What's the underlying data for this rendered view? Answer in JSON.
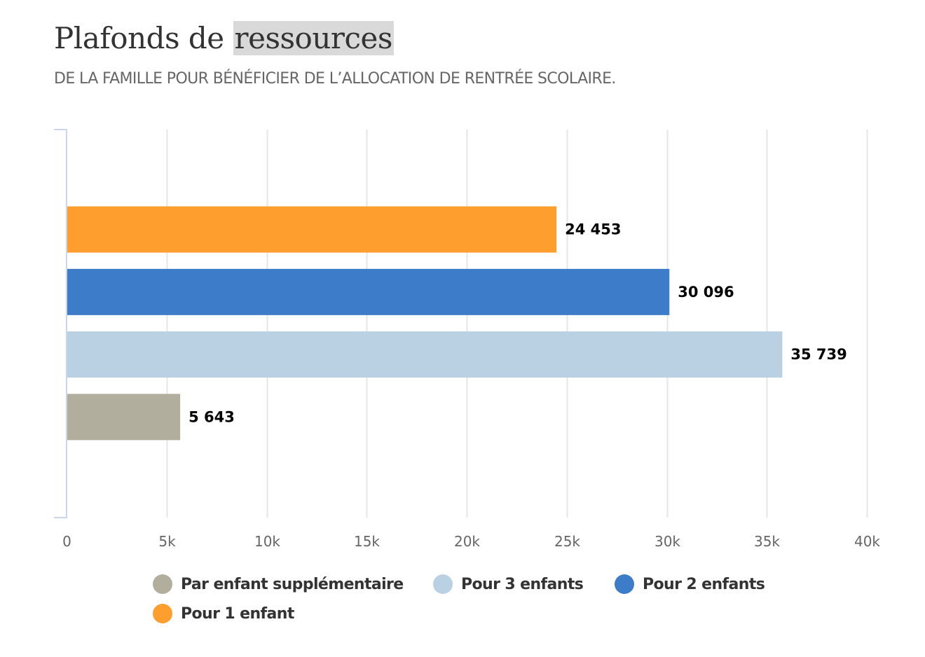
{
  "header": {
    "title_part1": "Plafonds de",
    "title_part2": "ressources",
    "subtitle": "DE LA FAMILLE POUR BÉNÉFICIER DE L’ALLOCATION DE RENTRÉE SCOLAIRE."
  },
  "chart_data": {
    "type": "bar",
    "orientation": "horizontal",
    "title": "Plafonds de ressources",
    "subtitle": "DE LA FAMILLE POUR BÉNÉFICIER DE L’ALLOCATION DE RENTRÉE SCOLAIRE.",
    "xlabel": "",
    "ylabel": "",
    "xlim": [
      0,
      40000
    ],
    "x_ticks": [
      0,
      5000,
      10000,
      15000,
      20000,
      25000,
      30000,
      35000,
      40000
    ],
    "x_tick_labels": [
      "0",
      "5k",
      "10k",
      "15k",
      "20k",
      "25k",
      "30k",
      "35k",
      "40k"
    ],
    "grid": true,
    "legend_position": "bottom",
    "series": [
      {
        "name": "Pour 1 enfant",
        "value": 24453,
        "label": "24 453",
        "color": "#fd9e2f"
      },
      {
        "name": "Pour 2 enfants",
        "value": 30096,
        "label": "30 096",
        "color": "#3d7cc9"
      },
      {
        "name": "Pour 3 enfants",
        "value": 35739,
        "label": "35 739",
        "color": "#bad0e3"
      },
      {
        "name": "Par enfant supplémentaire",
        "value": 5643,
        "label": "5 643",
        "color": "#b1ae9d"
      }
    ],
    "legend": [
      {
        "name": "Par enfant supplémentaire",
        "color": "#b1ae9d"
      },
      {
        "name": "Pour 3 enfants",
        "color": "#bad0e3"
      },
      {
        "name": "Pour 2 enfants",
        "color": "#3d7cc9"
      },
      {
        "name": "Pour 1 enfant",
        "color": "#fd9e2f"
      }
    ]
  }
}
